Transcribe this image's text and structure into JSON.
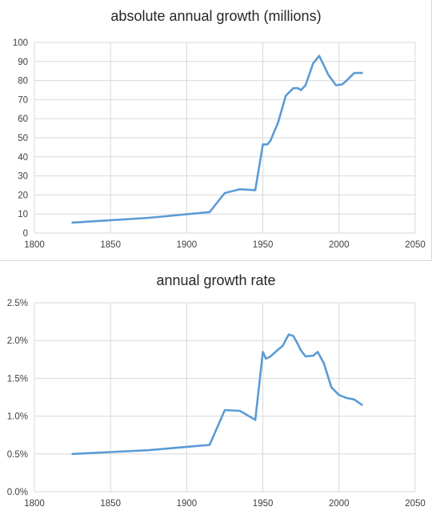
{
  "chart_data": [
    {
      "type": "line",
      "title": "absolute annual growth (millions)",
      "xlabel": "",
      "ylabel": "",
      "xlim": [
        1800,
        2050
      ],
      "ylim": [
        0,
        100
      ],
      "x_ticks": [
        "1800",
        "1850",
        "1900",
        "1950",
        "2000",
        "2050"
      ],
      "y_ticks": [
        "0",
        "10",
        "20",
        "30",
        "40",
        "50",
        "60",
        "70",
        "80",
        "90",
        "100"
      ],
      "grid": true,
      "legend": "none",
      "color": "#5b9bd5",
      "series": [
        {
          "x": [
            1825,
            1875,
            1915,
            1925,
            1935,
            1945,
            1950,
            1953,
            1955,
            1960,
            1965,
            1970,
            1973,
            1975,
            1978,
            1983,
            1987,
            1990,
            1993,
            1998,
            2002,
            2005,
            2010,
            2015
          ],
          "values": [
            5.5,
            8,
            11,
            21,
            23,
            22.5,
            46.5,
            46.5,
            48.5,
            58,
            72,
            76,
            76,
            75,
            77.5,
            89,
            93,
            88,
            83,
            77.5,
            78,
            80,
            84,
            84
          ]
        }
      ]
    },
    {
      "type": "line",
      "title": "annual growth rate",
      "xlabel": "",
      "ylabel": "",
      "xlim": [
        1800,
        2050
      ],
      "ylim": [
        0,
        2.5
      ],
      "x_ticks": [
        "1800",
        "1850",
        "1900",
        "1950",
        "2000",
        "2050"
      ],
      "y_ticks": [
        "0.0%",
        "0.5%",
        "1.0%",
        "1.5%",
        "2.0%",
        "2.5%"
      ],
      "grid": true,
      "legend": "none",
      "color": "#5b9bd5",
      "series": [
        {
          "x": [
            1825,
            1875,
            1915,
            1925,
            1935,
            1945,
            1950,
            1952,
            1955,
            1960,
            1963,
            1965,
            1967,
            1970,
            1973,
            1975,
            1978,
            1983,
            1986,
            1990,
            1995,
            2000,
            2005,
            2010,
            2015
          ],
          "values": [
            0.5,
            0.55,
            0.62,
            1.08,
            1.07,
            0.95,
            1.85,
            1.76,
            1.79,
            1.88,
            1.93,
            2.01,
            2.08,
            2.06,
            1.95,
            1.87,
            1.79,
            1.8,
            1.85,
            1.7,
            1.38,
            1.28,
            1.24,
            1.22,
            1.15
          ]
        }
      ]
    }
  ]
}
